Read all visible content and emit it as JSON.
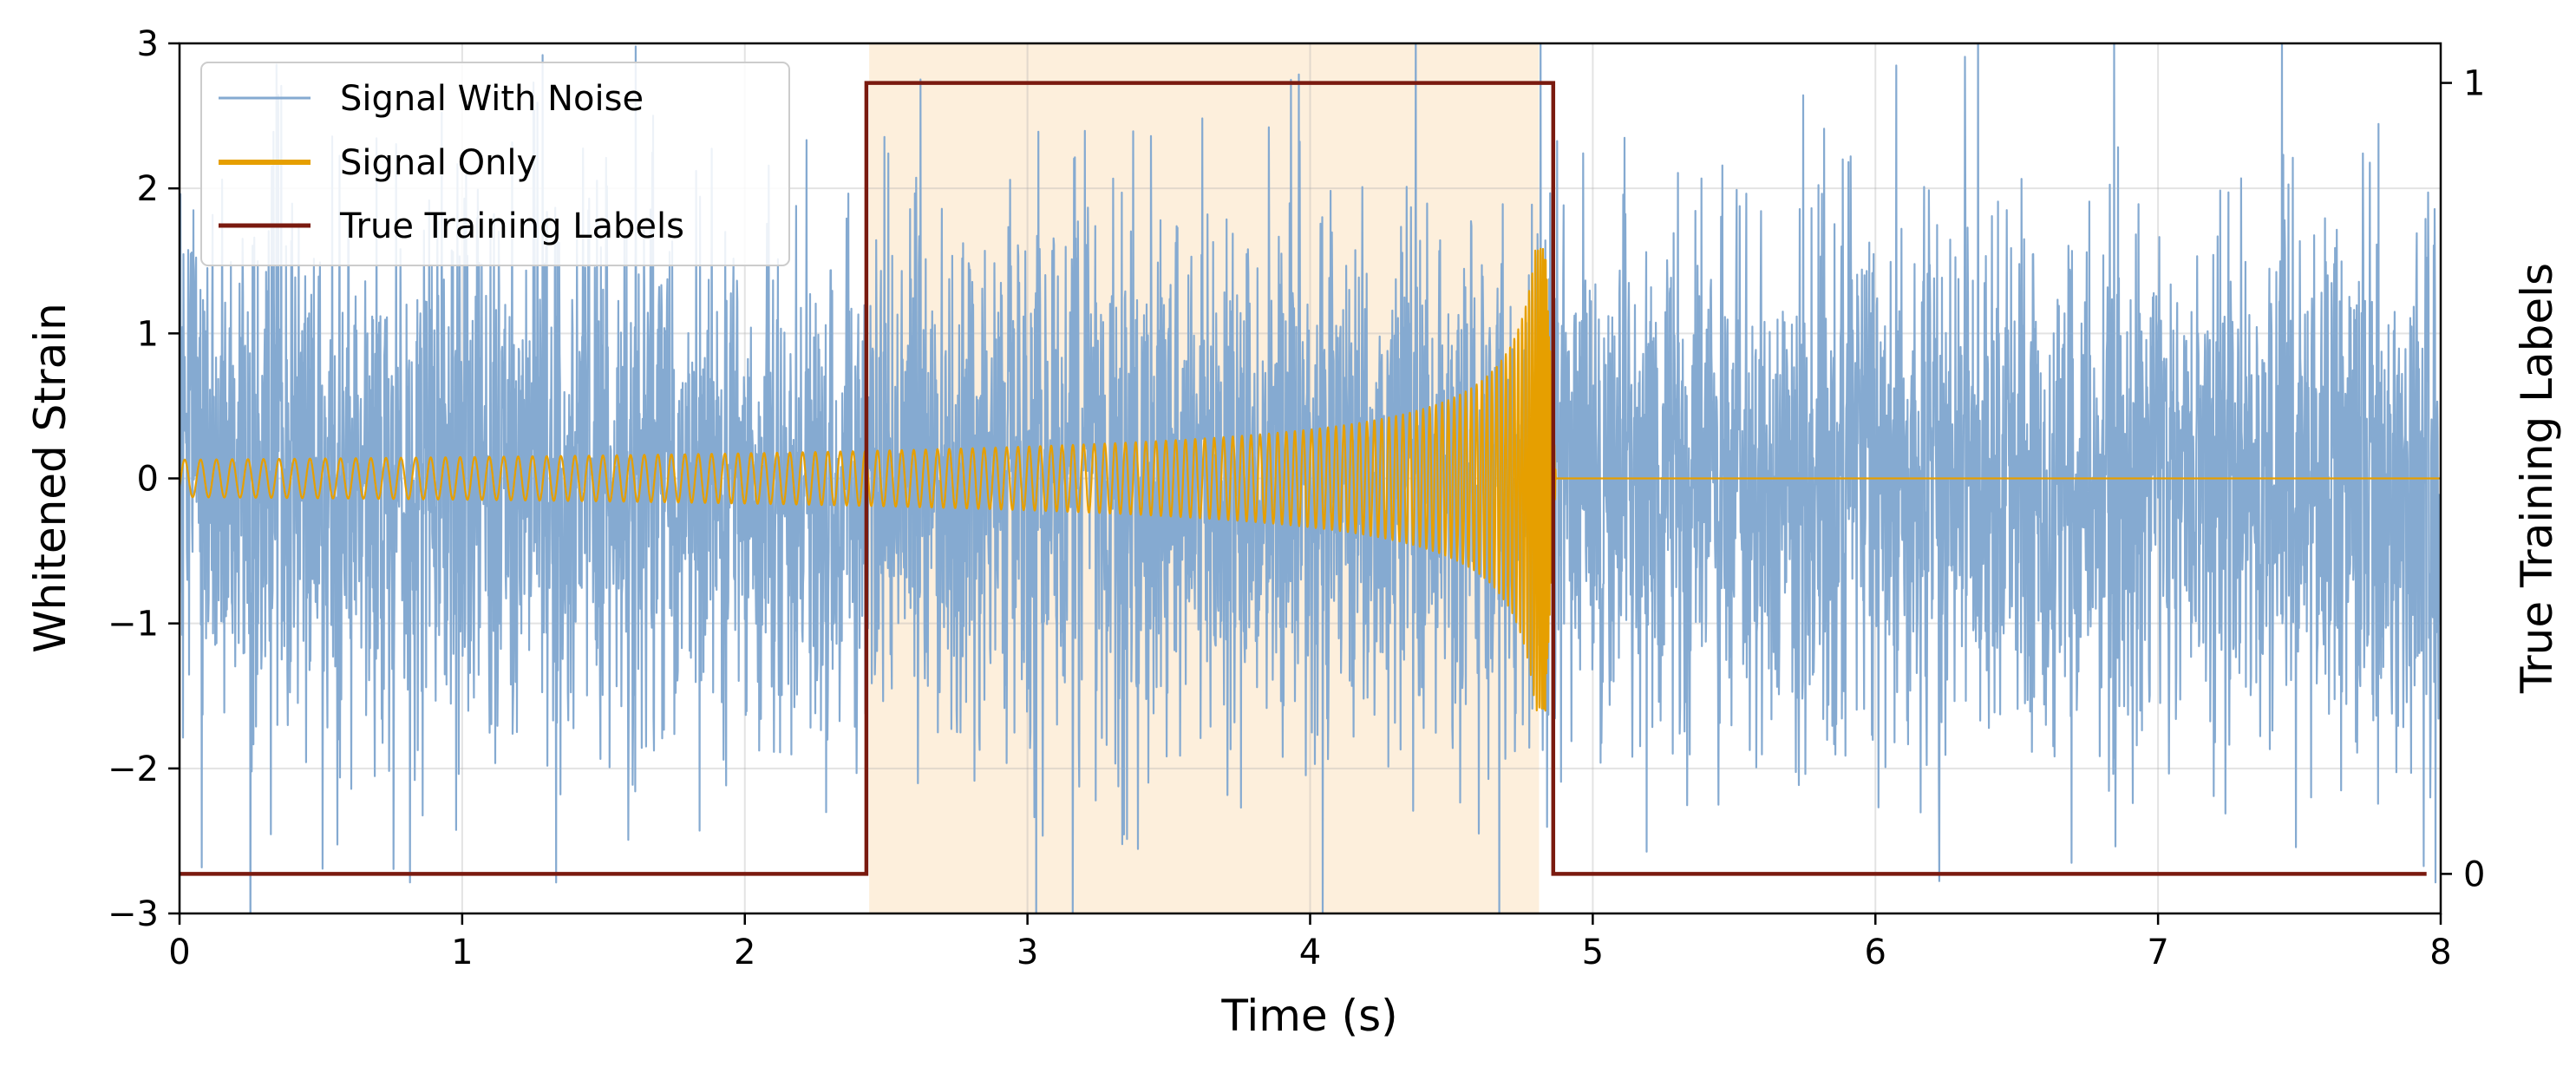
{
  "chart_data": {
    "type": "line",
    "xlabel": "Time (s)",
    "ylabel": "Whitened Strain",
    "y2label": "True Training Labels",
    "xlim": [
      0,
      8
    ],
    "ylim": [
      -3,
      3
    ],
    "y2lim": [
      -0.05,
      1.05
    ],
    "xticks": [
      0,
      1,
      2,
      3,
      4,
      5,
      6,
      7,
      8
    ],
    "xtick_labels": [
      "0",
      "1",
      "2",
      "3",
      "4",
      "5",
      "6",
      "7",
      "8"
    ],
    "yticks": [
      -3,
      -2,
      -1,
      0,
      1,
      2,
      3
    ],
    "ytick_labels": [
      "−3",
      "−2",
      "−1",
      "0",
      "1",
      "2",
      "3"
    ],
    "y2ticks": [
      0,
      1
    ],
    "y2tick_labels": [
      "0",
      "1"
    ],
    "grid": true,
    "legend_position": "top-left",
    "shaded_region": {
      "x_start": 2.44,
      "x_end": 4.81,
      "color": "#fdefdc"
    },
    "series": [
      {
        "name": "Signal With Noise",
        "color": "#85aad1",
        "axis": "left",
        "description": "gaussian noise, standard deviation about 0.9, spanning 0 to 8 s"
      },
      {
        "name": "Signal Only",
        "color": "#e69f00",
        "axis": "left",
        "description": "chirp: amplitude about 0.1 at t=0 rising to about 1.5 near t=4.81, zero after 4.87 s"
      },
      {
        "name": "True Training Labels",
        "color": "#7a1a0f",
        "axis": "right",
        "x": [
          0,
          2.43,
          2.43,
          4.86,
          4.86,
          7.95
        ],
        "y": [
          0,
          0,
          1,
          1,
          0,
          0
        ]
      }
    ]
  }
}
